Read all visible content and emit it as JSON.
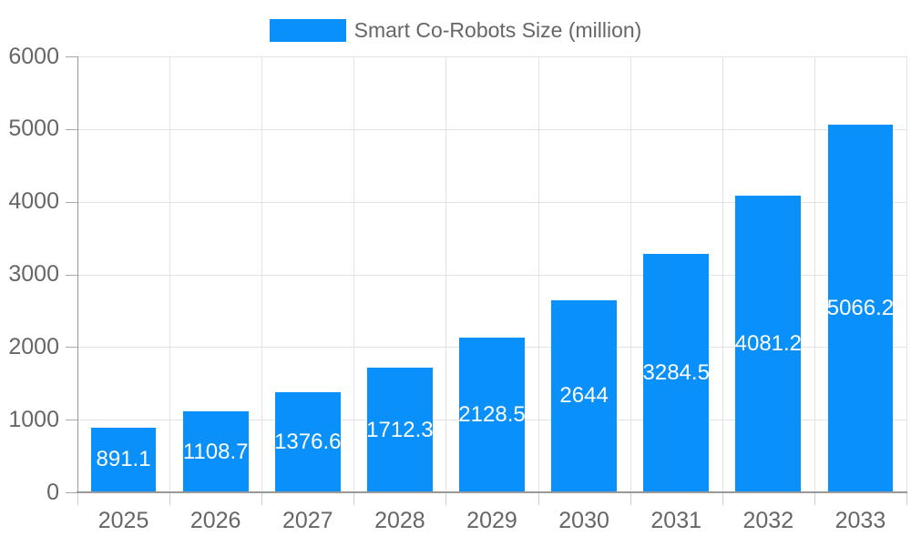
{
  "legend": {
    "label": "Smart Co-Robots Size (million)",
    "swatch_color": "#0a90fa",
    "position": "top-center"
  },
  "chart_data": {
    "type": "bar",
    "title": "Smart Co-Robots Size (million)",
    "categories": [
      "2025",
      "2026",
      "2027",
      "2028",
      "2029",
      "2030",
      "2031",
      "2032",
      "2033"
    ],
    "values": [
      891.1,
      1108.7,
      1376.6,
      1712.3,
      2128.5,
      2644,
      3284.5,
      4081.2,
      5066.2
    ],
    "value_labels": [
      "891.1",
      "1108.7",
      "1376.6",
      "1712.3",
      "2128.5",
      "2644",
      "3284.5",
      "4081.2",
      "5066.2"
    ],
    "series_name": "Smart Co-Robots Size (million)",
    "xlabel": "",
    "ylabel": "",
    "ylim": [
      0,
      6000
    ],
    "yticks": [
      0,
      1000,
      2000,
      3000,
      4000,
      5000,
      6000
    ],
    "grid": true,
    "legend_position": "top",
    "value_label_position": "inside-center",
    "colors": {
      "bar": "#0a90fa",
      "value_label": "#ffffff",
      "axis_label": "#666666",
      "grid_line": "#e3e3e3",
      "axis_line": "#999999",
      "y_tick": "#aaaaaa",
      "x_tick": "#cccccc"
    }
  }
}
